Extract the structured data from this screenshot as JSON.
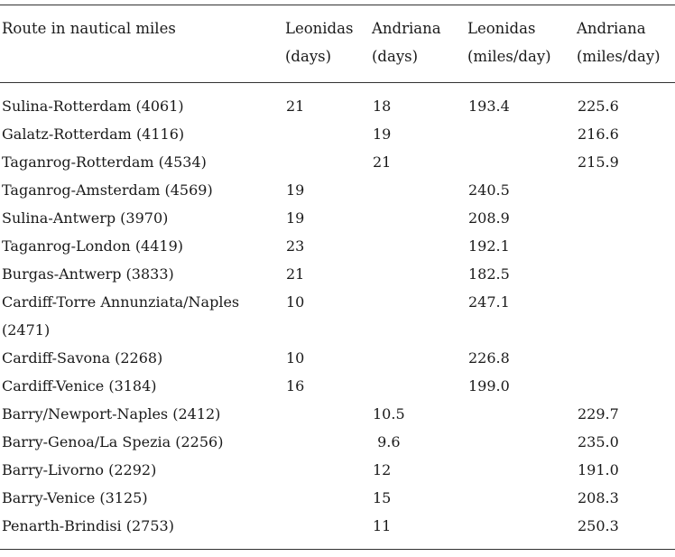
{
  "table": {
    "headers": {
      "route": "Route in nautical miles",
      "leonidas_days_1": "Leonidas",
      "leonidas_days_2": "(days)",
      "andriana_days_1": "Andriana",
      "andriana_days_2": "(days)",
      "leonidas_mpd_1": "Leonidas",
      "leonidas_mpd_2": "(miles/day)",
      "andriana_mpd_1": "Andriana",
      "andriana_mpd_2": "(miles/day)"
    },
    "rows": [
      {
        "route": "Sulina-Rotterdam (4061)",
        "leonidas_days": "21",
        "andriana_days": "18",
        "leonidas_mpd": "193.4",
        "andriana_mpd": "225.6"
      },
      {
        "route": "Galatz-Rotterdam (4116)",
        "leonidas_days": "",
        "andriana_days": "19",
        "leonidas_mpd": "",
        "andriana_mpd": "216.6"
      },
      {
        "route": "Taganrog-Rotterdam (4534)",
        "leonidas_days": "",
        "andriana_days": "21",
        "leonidas_mpd": "",
        "andriana_mpd": "215.9"
      },
      {
        "route": "Taganrog-Amsterdam (4569)",
        "leonidas_days": "19",
        "andriana_days": "",
        "leonidas_mpd": "240.5",
        "andriana_mpd": ""
      },
      {
        "route": "Sulina-Antwerp (3970)",
        "leonidas_days": "19",
        "andriana_days": "",
        "leonidas_mpd": "208.9",
        "andriana_mpd": ""
      },
      {
        "route": "Taganrog-London (4419)",
        "leonidas_days": "23",
        "andriana_days": "",
        "leonidas_mpd": "192.1",
        "andriana_mpd": ""
      },
      {
        "route": "Burgas-Antwerp (3833)",
        "leonidas_days": "21",
        "andriana_days": "",
        "leonidas_mpd": "182.5",
        "andriana_mpd": ""
      },
      {
        "route": "Cardiff-Torre Annunziata/Naples (2471)",
        "leonidas_days": "10",
        "andriana_days": "",
        "leonidas_mpd": "247.1",
        "andriana_mpd": ""
      },
      {
        "route": "Cardiff-Savona (2268)",
        "leonidas_days": "10",
        "andriana_days": "",
        "leonidas_mpd": "226.8",
        "andriana_mpd": ""
      },
      {
        "route": "Cardiff-Venice (3184)",
        "leonidas_days": "16",
        "andriana_days": "",
        "leonidas_mpd": "199.0",
        "andriana_mpd": ""
      },
      {
        "route": "Barry/Newport-Naples (2412)",
        "leonidas_days": "",
        "andriana_days": "10.5",
        "leonidas_mpd": "",
        "andriana_mpd": "229.7"
      },
      {
        "route": "Barry-Genoa/La Spezia (2256)",
        "leonidas_days": "",
        "andriana_days": " 9.6",
        "leonidas_mpd": "",
        "andriana_mpd": "235.0"
      },
      {
        "route": "Barry-Livorno (2292)",
        "leonidas_days": "",
        "andriana_days": "12",
        "leonidas_mpd": "",
        "andriana_mpd": "191.0"
      },
      {
        "route": "Barry-Venice (3125)",
        "leonidas_days": "",
        "andriana_days": "15",
        "leonidas_mpd": "",
        "andriana_mpd": "208.3"
      },
      {
        "route": "Penarth-Brindisi (2753)",
        "leonidas_days": "",
        "andriana_days": "11",
        "leonidas_mpd": "",
        "andriana_mpd": "250.3"
      }
    ]
  }
}
